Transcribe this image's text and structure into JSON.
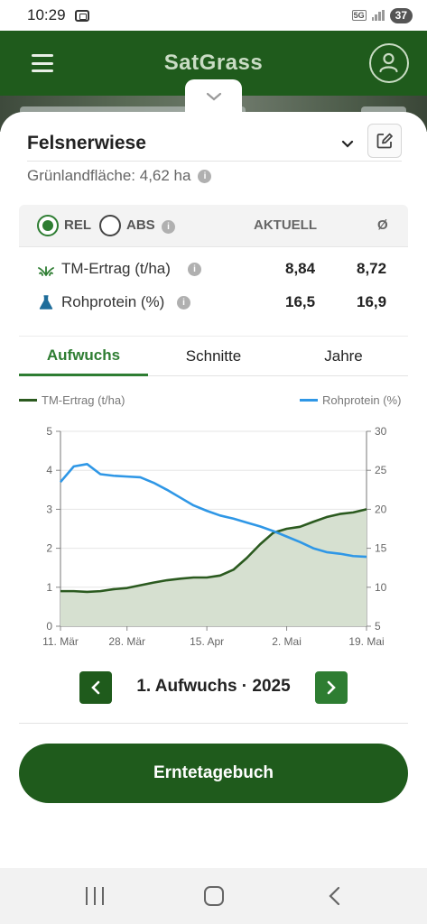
{
  "status_bar": {
    "time": "10:29",
    "network": "5G",
    "battery": "37"
  },
  "header": {
    "title": "SatGrass"
  },
  "field": {
    "name": "Felsnerwiese",
    "area_label": "Grünlandfläche: 4,62 ha"
  },
  "stats": {
    "mode_rel": "REL",
    "mode_abs": "ABS",
    "selected_mode": "REL",
    "col_current": "AKTUELL",
    "col_avg": "Ø",
    "rows": [
      {
        "label": "TM-Ertrag (t/ha)",
        "current": "8,84",
        "avg": "8,72",
        "icon": "grass-icon"
      },
      {
        "label": "Rohprotein (%)",
        "current": "16,5",
        "avg": "16,9",
        "icon": "flask-icon"
      }
    ]
  },
  "tabs": [
    {
      "label": "Aufwuchs",
      "active": true
    },
    {
      "label": "Schnitte",
      "active": false
    },
    {
      "label": "Jahre",
      "active": false
    }
  ],
  "colors": {
    "brand": "#1f5b1c",
    "accent": "#2e7d32",
    "yield_line": "#2b5a1f",
    "yield_fill": "#d6e0d0",
    "protein_line": "#2f97e6"
  },
  "chart_data": {
    "type": "area",
    "x": [
      "11. Mär",
      "15. Mär",
      "19. Mär",
      "22. Mär",
      "25. Mär",
      "28. Mär",
      "31. Mär",
      "3. Apr",
      "6. Apr",
      "9. Apr",
      "12. Apr",
      "15. Apr",
      "18. Apr",
      "21. Apr",
      "24. Apr",
      "27. Apr",
      "30. Apr",
      "2. Mai",
      "5. Mai",
      "8. Mai",
      "11. Mai",
      "14. Mai",
      "17. Mai",
      "19. Mai"
    ],
    "x_ticks": [
      "11. Mär",
      "28. Mär",
      "15. Apr",
      "2. Mai",
      "19. Mai"
    ],
    "series": [
      {
        "name": "TM-Ertrag (t/ha)",
        "axis": "left",
        "type": "area",
        "values": [
          0.9,
          0.9,
          0.88,
          0.9,
          0.95,
          0.98,
          1.05,
          1.12,
          1.18,
          1.22,
          1.25,
          1.25,
          1.3,
          1.45,
          1.75,
          2.1,
          2.4,
          2.5,
          2.55,
          2.68,
          2.8,
          2.88,
          2.92,
          3.0
        ]
      },
      {
        "name": "Rohprotein (%)",
        "axis": "right",
        "type": "line",
        "values": [
          23.5,
          25.5,
          25.8,
          24.5,
          24.3,
          24.2,
          24.1,
          23.4,
          22.5,
          21.5,
          20.5,
          19.8,
          19.2,
          18.8,
          18.3,
          17.8,
          17.2,
          16.5,
          15.8,
          15.0,
          14.5,
          14.3,
          14.0,
          13.9
        ]
      }
    ],
    "y_left_ticks": [
      "0",
      "1",
      "2",
      "3",
      "4",
      "5"
    ],
    "y_right_ticks": [
      "5",
      "10",
      "15",
      "20",
      "25",
      "30"
    ],
    "ylim_left": [
      0,
      5
    ],
    "ylim_right": [
      5,
      30
    ],
    "grid": true,
    "legend_position": "top"
  },
  "season": {
    "label": "1. Aufwuchs · 2025"
  },
  "actions": {
    "journal_label": "Erntetagebuch"
  }
}
